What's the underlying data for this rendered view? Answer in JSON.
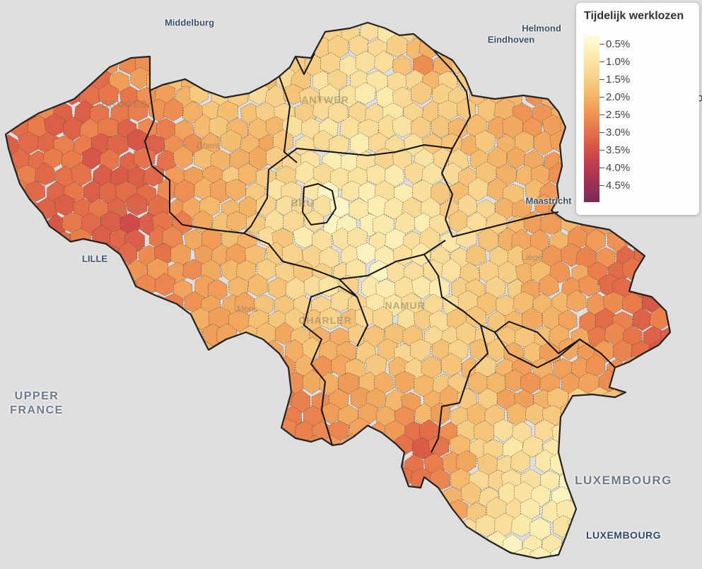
{
  "legend": {
    "title": "Tijdelijk werklozen",
    "ticks": [
      "0.5%",
      "1.0%",
      "1.5%",
      "2.0%",
      "2.5%",
      "3.0%",
      "3.5%",
      "4.0%",
      "4.5%"
    ],
    "colors": [
      "#fefddc",
      "#fbedb0",
      "#f8d893",
      "#f4bd70",
      "#f09c58",
      "#e8794a",
      "#d75747",
      "#bf3b4e",
      "#9c3055",
      "#7a2b57"
    ]
  },
  "places": {
    "middelburg": "Middelburg",
    "helmond": "Helmond",
    "eindhoven": "Eindhoven",
    "antwerp": "ANTWER",
    "bruges": "BRUGES",
    "ghent": "Ghent",
    "brussels": "BRU",
    "kortrijk": "Kortrijk",
    "lille": "LILLE",
    "maastricht": "Maastricht",
    "liege": "Liège",
    "mons": "Mons",
    "charleroi": "CHARLER",
    "namur": "NAMUR",
    "upper_france": "UPPER\nFRANCE",
    "luxembourg_country": "LUXEMBOURG",
    "luxembourg_city": "LUXEMBOURG",
    "edge_letter": "D"
  }
}
